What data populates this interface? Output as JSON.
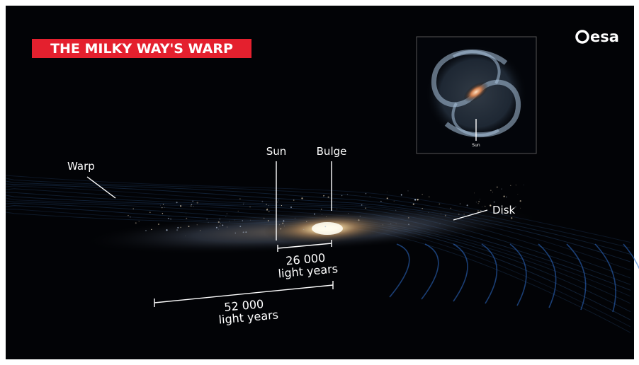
{
  "title": "THE MILKY WAY'S WARP",
  "logo": "esa",
  "labels": {
    "warp": "Warp",
    "sun": "Sun",
    "bulge": "Bulge",
    "disk": "Disk"
  },
  "measurements": [
    {
      "value": "26 000",
      "unit": "light years"
    },
    {
      "value": "52 000",
      "unit": "light years"
    }
  ],
  "inset": {
    "label": "Sun"
  }
}
